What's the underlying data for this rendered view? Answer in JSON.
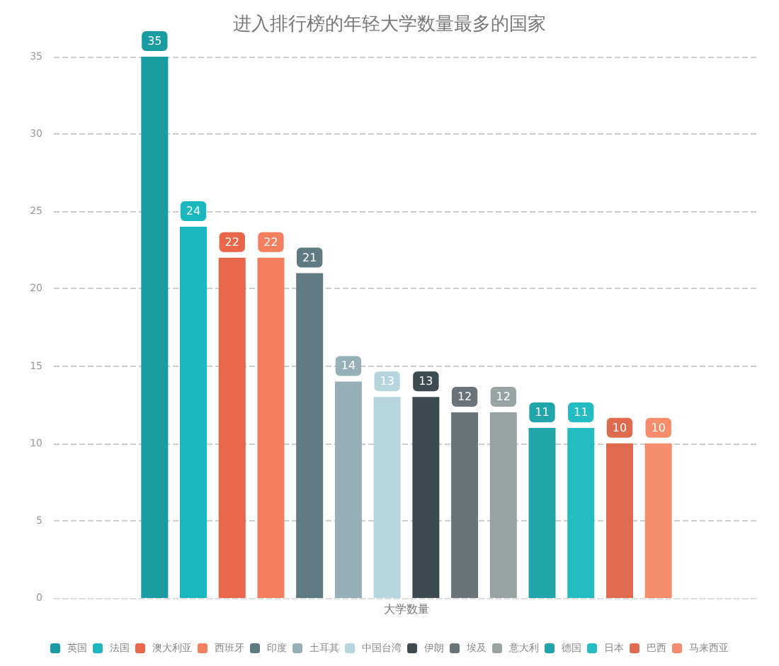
{
  "chart_data": {
    "type": "bar",
    "title": "进入排行榜的年轻大学数量最多的国家",
    "categories": [
      "大学数量"
    ],
    "series": [
      {
        "name": "英国",
        "color": "#1a9ba1",
        "values": [
          35
        ]
      },
      {
        "name": "法国",
        "color": "#1ab8be",
        "values": [
          24
        ]
      },
      {
        "name": "澳大利亚",
        "color": "#e8674a",
        "values": [
          22
        ]
      },
      {
        "name": "西班牙",
        "color": "#f47f5f",
        "values": [
          22
        ]
      },
      {
        "name": "印度",
        "color": "#5f7a80",
        "values": [
          21
        ]
      },
      {
        "name": "土耳其",
        "color": "#95b0b6",
        "values": [
          14
        ]
      },
      {
        "name": "中国台湾",
        "color": "#b7d5dc",
        "values": [
          13
        ]
      },
      {
        "name": "伊朗",
        "color": "#3d4b50",
        "values": [
          13
        ]
      },
      {
        "name": "埃及",
        "color": "#6a7478",
        "values": [
          12
        ]
      },
      {
        "name": "意大利",
        "color": "#9aa3a3",
        "values": [
          12
        ]
      },
      {
        "name": "德国",
        "color": "#1fa5aa",
        "values": [
          11
        ]
      },
      {
        "name": "日本",
        "color": "#23bcc2",
        "values": [
          11
        ]
      },
      {
        "name": "巴西",
        "color": "#e06a4f",
        "values": [
          10
        ]
      },
      {
        "name": "马来西亚",
        "color": "#f58c6c",
        "values": [
          10
        ]
      }
    ],
    "ylim": [
      0,
      35
    ],
    "yticks": [
      0,
      5,
      10,
      15,
      20,
      25,
      30,
      35
    ],
    "grid": "y",
    "legend": "bottom",
    "data_labels": true
  }
}
